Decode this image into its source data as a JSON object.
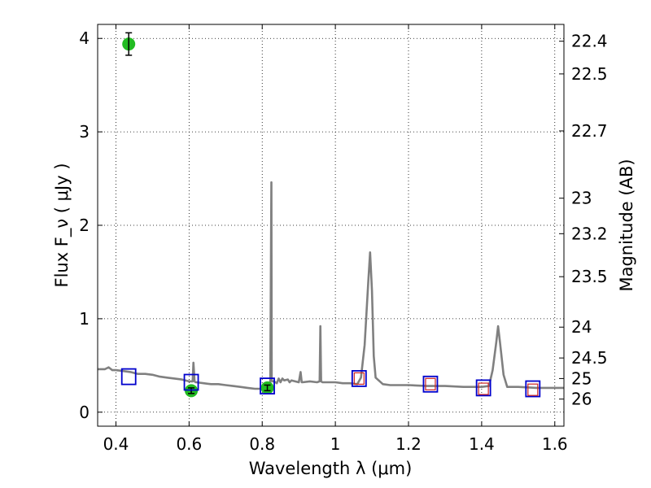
{
  "chart_data": {
    "type": "scatter",
    "xlabel": "Wavelength  λ (μm)",
    "ylabel": "Flux  F_ν  ( μJy )",
    "ylabel_right": "Magnitude (AB)",
    "xlim": [
      0.35,
      1.625
    ],
    "ylim": [
      -0.15,
      4.15
    ],
    "grid": true,
    "x_ticks": [
      0.4,
      0.6,
      0.8,
      1,
      1.2,
      1.4,
      1.6
    ],
    "x_tick_labels": [
      "0.4",
      "0.6",
      "0.8",
      "1",
      "1.2",
      "1.4",
      "1.6"
    ],
    "y_ticks": [
      0,
      1,
      2,
      3,
      4
    ],
    "y_tick_labels": [
      "0",
      "1",
      "2",
      "3",
      "4"
    ],
    "right_ticks": [
      {
        "label": "22.4",
        "flux": 3.97
      },
      {
        "label": "22.5",
        "flux": 3.62
      },
      {
        "label": "22.7",
        "flux": 3.01
      },
      {
        "label": "23",
        "flux": 2.29
      },
      {
        "label": "23.2",
        "flux": 1.91
      },
      {
        "label": "23.5",
        "flux": 1.45
      },
      {
        "label": "24",
        "flux": 0.91
      },
      {
        "label": "24.5",
        "flux": 0.58
      },
      {
        "label": "25",
        "flux": 0.36
      },
      {
        "label": "26",
        "flux": 0.14
      }
    ],
    "series": [
      {
        "kind": "model-spectrum",
        "color": "#808080",
        "x": [
          0.35,
          0.37,
          0.38,
          0.39,
          0.4,
          0.42,
          0.44,
          0.46,
          0.48,
          0.5,
          0.52,
          0.54,
          0.56,
          0.58,
          0.6,
          0.61,
          0.612,
          0.615,
          0.618,
          0.62,
          0.64,
          0.66,
          0.68,
          0.7,
          0.72,
          0.74,
          0.76,
          0.78,
          0.8,
          0.82,
          0.822,
          0.825,
          0.826,
          0.828,
          0.832,
          0.84,
          0.845,
          0.85,
          0.855,
          0.86,
          0.87,
          0.875,
          0.88,
          0.89,
          0.9,
          0.905,
          0.908,
          0.91,
          0.93,
          0.95,
          0.957,
          0.959,
          0.961,
          0.965,
          1.0,
          1.02,
          1.04,
          1.06,
          1.07,
          1.08,
          1.09,
          1.095,
          1.1,
          1.105,
          1.11,
          1.13,
          1.15,
          1.2,
          1.25,
          1.3,
          1.35,
          1.4,
          1.42,
          1.43,
          1.44,
          1.445,
          1.45,
          1.46,
          1.47,
          1.5,
          1.55,
          1.6,
          1.625
        ],
        "y": [
          0.46,
          0.46,
          0.48,
          0.45,
          0.45,
          0.44,
          0.43,
          0.41,
          0.41,
          0.4,
          0.38,
          0.37,
          0.36,
          0.35,
          0.33,
          0.33,
          0.53,
          0.33,
          0.32,
          0.32,
          0.31,
          0.3,
          0.3,
          0.29,
          0.28,
          0.27,
          0.26,
          0.25,
          0.25,
          0.25,
          0.25,
          2.46,
          0.34,
          0.33,
          0.33,
          0.31,
          0.36,
          0.32,
          0.36,
          0.34,
          0.35,
          0.32,
          0.34,
          0.33,
          0.32,
          0.43,
          0.32,
          0.32,
          0.33,
          0.32,
          0.33,
          0.92,
          0.33,
          0.32,
          0.32,
          0.31,
          0.31,
          0.3,
          0.37,
          0.72,
          1.4,
          1.71,
          1.3,
          0.6,
          0.37,
          0.3,
          0.29,
          0.29,
          0.28,
          0.28,
          0.27,
          0.27,
          0.28,
          0.45,
          0.75,
          0.92,
          0.75,
          0.4,
          0.27,
          0.27,
          0.26,
          0.26,
          0.26
        ]
      },
      {
        "kind": "observed-photometry",
        "color": "#22bb22",
        "x": [
          0.435,
          0.606,
          0.814
        ],
        "y": [
          3.94,
          0.23,
          0.26
        ],
        "yerr": [
          0.12,
          0.03,
          0.03
        ]
      },
      {
        "kind": "model-photometry",
        "color": "#0000cc",
        "x": [
          0.435,
          0.606,
          0.814,
          1.065,
          1.26,
          1.405,
          1.54
        ],
        "y": [
          0.38,
          0.32,
          0.28,
          0.36,
          0.3,
          0.26,
          0.25
        ]
      },
      {
        "kind": "upper-limits",
        "color": "#cc2222",
        "x": [
          1.065,
          1.26,
          1.405,
          1.54
        ],
        "y": [
          0.36,
          0.3,
          0.25,
          0.24
        ]
      }
    ]
  }
}
